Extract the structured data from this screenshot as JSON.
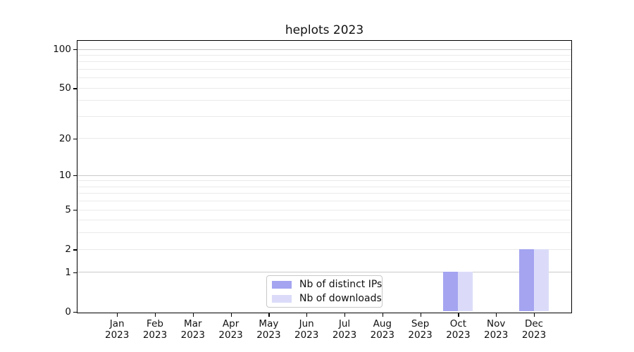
{
  "chart_data": {
    "type": "bar",
    "title": "heplots 2023",
    "categories": [
      {
        "month": "Jan",
        "year": "2023"
      },
      {
        "month": "Feb",
        "year": "2023"
      },
      {
        "month": "Mar",
        "year": "2023"
      },
      {
        "month": "Apr",
        "year": "2023"
      },
      {
        "month": "May",
        "year": "2023"
      },
      {
        "month": "Jun",
        "year": "2023"
      },
      {
        "month": "Jul",
        "year": "2023"
      },
      {
        "month": "Aug",
        "year": "2023"
      },
      {
        "month": "Sep",
        "year": "2023"
      },
      {
        "month": "Oct",
        "year": "2023"
      },
      {
        "month": "Nov",
        "year": "2023"
      },
      {
        "month": "Dec",
        "year": "2023"
      }
    ],
    "series": [
      {
        "name": "Nb of distinct IPs",
        "color": "#a4a4f1",
        "values": [
          0,
          0,
          0,
          0,
          0,
          0,
          0,
          0,
          0,
          1,
          0,
          2
        ]
      },
      {
        "name": "Nb of downloads",
        "color": "#dbdbf9",
        "values": [
          0,
          0,
          0,
          0,
          0,
          0,
          0,
          0,
          0,
          1,
          0,
          2
        ]
      }
    ],
    "yscale": "log1p",
    "ylim": [
      0,
      100
    ],
    "ytick_values": [
      0,
      1,
      2,
      5,
      10,
      20,
      50,
      100
    ],
    "ytick_labels": [
      "0",
      "1",
      "2",
      "5",
      "10",
      "20",
      "50",
      "100"
    ],
    "major_grid_values": [
      1,
      10,
      100
    ],
    "minor_grid_values": [
      3,
      4,
      6,
      7,
      8,
      9,
      30,
      40,
      60,
      70,
      80,
      90
    ],
    "grid": true,
    "legend_position": "bottom-center",
    "legend_entries": [
      "Nb of distinct IPs",
      "Nb of downloads"
    ]
  }
}
